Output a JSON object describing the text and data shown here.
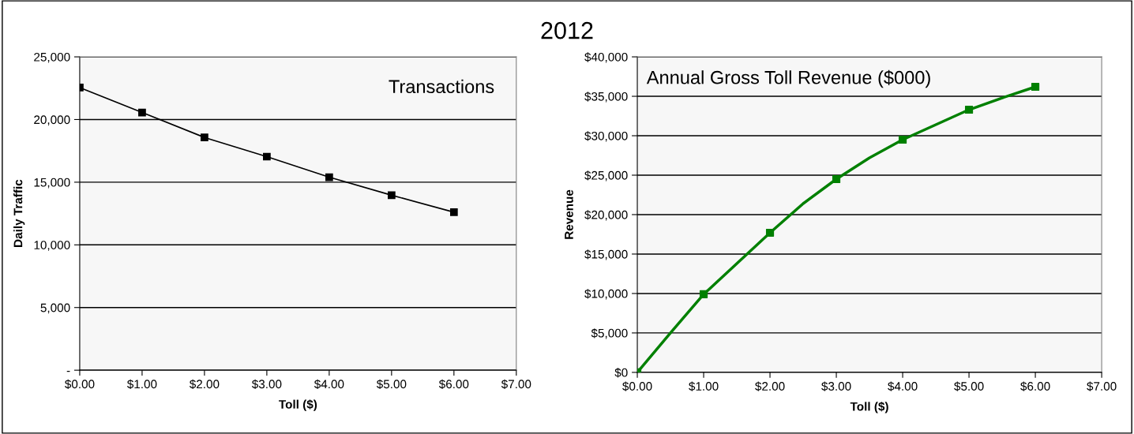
{
  "chart_data": [
    {
      "type": "line",
      "title": "2012",
      "annotations": [
        "Transactions"
      ],
      "xlabel": "Toll ($)",
      "ylabel": "Daily Traffic",
      "x": [
        0,
        1,
        2,
        3,
        4,
        5,
        6
      ],
      "series": [
        {
          "color": "#000000",
          "values": [
            22550,
            20560,
            18570,
            17040,
            15400,
            13960,
            12610
          ]
        }
      ],
      "marker": "square",
      "line_style": "solid",
      "xlim": [
        0,
        7
      ],
      "xticks": [
        {
          "value": 0,
          "label": "$0.00"
        },
        {
          "value": 1,
          "label": "$1.00"
        },
        {
          "value": 2,
          "label": "$2.00"
        },
        {
          "value": 3,
          "label": "$3.00"
        },
        {
          "value": 4,
          "label": "$4.00"
        },
        {
          "value": 5,
          "label": "$5.00"
        },
        {
          "value": 6,
          "label": "$6.00"
        },
        {
          "value": 7,
          "label": "$7.00"
        }
      ],
      "ylim": [
        0,
        25000
      ],
      "yticks": [
        {
          "value": 0,
          "label": "-"
        },
        {
          "value": 5000,
          "label": "5,000"
        },
        {
          "value": 10000,
          "label": "10,000"
        },
        {
          "value": 15000,
          "label": "15,000"
        },
        {
          "value": 20000,
          "label": "20,000"
        },
        {
          "value": 25000,
          "label": "25,000"
        }
      ],
      "grid": "y",
      "legend": false
    },
    {
      "type": "line",
      "annotations": [
        "Annual Gross Toll Revenue ($000)"
      ],
      "xlabel": "Toll ($)",
      "ylabel": "Revenue",
      "series": [
        {
          "type": "line",
          "color": "#008000",
          "marker": "none",
          "x": [
            0,
            0.5,
            1,
            1.5,
            2,
            2.5,
            3,
            3.5,
            4,
            4.5,
            5,
            5.5,
            6
          ],
          "values": [
            0,
            5000,
            9900,
            13800,
            17700,
            21400,
            24500,
            27200,
            29500,
            31400,
            33300,
            34800,
            36200
          ]
        },
        {
          "type": "scatter",
          "color": "#008000",
          "marker": "square",
          "x": [
            0,
            1,
            2,
            3,
            4,
            5,
            6
          ],
          "values": [
            0,
            9900,
            17700,
            24500,
            29500,
            33300,
            36200
          ]
        }
      ],
      "line_style": "solid",
      "xlim": [
        0,
        7
      ],
      "xticks": [
        {
          "value": 0,
          "label": "$0.00"
        },
        {
          "value": 1,
          "label": "$1.00"
        },
        {
          "value": 2,
          "label": "$2.00"
        },
        {
          "value": 3,
          "label": "$3.00"
        },
        {
          "value": 4,
          "label": "$4.00"
        },
        {
          "value": 5,
          "label": "$5.00"
        },
        {
          "value": 6,
          "label": "$6.00"
        },
        {
          "value": 7,
          "label": "$7.00"
        }
      ],
      "ylim": [
        0,
        40000
      ],
      "yticks": [
        {
          "value": 0,
          "label": "$0"
        },
        {
          "value": 5000,
          "label": "$5,000"
        },
        {
          "value": 10000,
          "label": "$10,000"
        },
        {
          "value": 15000,
          "label": "$15,000"
        },
        {
          "value": 20000,
          "label": "$20,000"
        },
        {
          "value": 25000,
          "label": "$25,000"
        },
        {
          "value": 30000,
          "label": "$30,000"
        },
        {
          "value": 35000,
          "label": "$35,000"
        },
        {
          "value": 40000,
          "label": "$40,000"
        }
      ],
      "grid": "y",
      "legend": false
    }
  ]
}
